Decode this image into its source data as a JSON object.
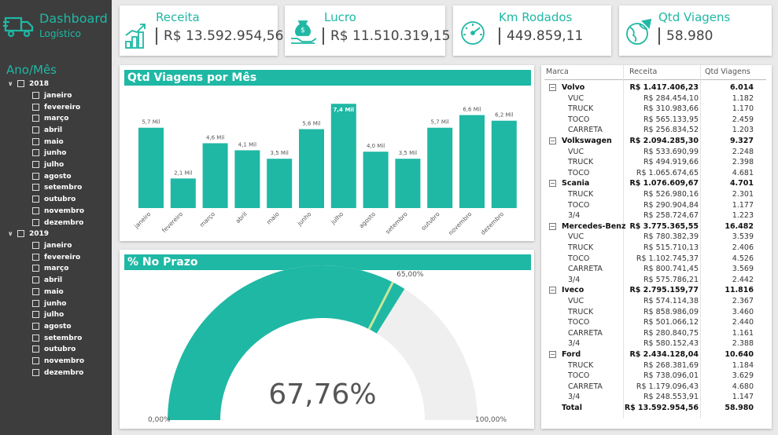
{
  "colors": {
    "accent": "#1fb8a4",
    "sidebar": "#3d3d3d",
    "gauge_remaining": "#f0efef",
    "target_marker": "#c8e89a"
  },
  "brand": {
    "title": "Dashboard",
    "subtitle": "Logístico",
    "icon": "truck-icon"
  },
  "slicer": {
    "title": "Ano/Mês",
    "years": [
      {
        "label": "2018",
        "months": [
          "janeiro",
          "fevereiro",
          "março",
          "abril",
          "maio",
          "junho",
          "julho",
          "agosto",
          "setembro",
          "outubro",
          "novembro",
          "dezembro"
        ]
      },
      {
        "label": "2019",
        "months": [
          "janeiro",
          "fevereiro",
          "março",
          "abril",
          "maio",
          "junho",
          "julho",
          "agosto",
          "setembro",
          "outubro",
          "novembro",
          "dezembro"
        ]
      }
    ]
  },
  "kpis": [
    {
      "label": "Receita",
      "value": "R$ 13.592.954,56",
      "icon": "growth-coins-icon"
    },
    {
      "label": "Lucro",
      "value": "R$ 11.510.319,15",
      "icon": "money-hand-icon"
    },
    {
      "label": "Km Rodados",
      "value": "449.859,11",
      "icon": "speedometer-icon"
    },
    {
      "label": "Qtd Viagens",
      "value": "58.980",
      "icon": "globe-plane-icon"
    }
  ],
  "bar_chart": {
    "title": "Qtd Viagens por Mês",
    "chart_data": {
      "type": "bar",
      "categories": [
        "janeiro",
        "fevereiro",
        "março",
        "abril",
        "maio",
        "junho",
        "julho",
        "agosto",
        "setembro",
        "outubro",
        "novembro",
        "dezembro"
      ],
      "values": [
        5.7,
        2.1,
        4.6,
        4.1,
        3.5,
        5.6,
        7.4,
        4.0,
        3.5,
        5.7,
        6.6,
        6.2
      ],
      "data_labels": [
        "5,7 Mil",
        "2,1 Mil",
        "4,6 Mil",
        "4,1 Mil",
        "3,5 Mil",
        "5,6 Mil",
        "7,4 Mil",
        "4,0 Mil",
        "3,5 Mil",
        "5,7 Mil",
        "6,6 Mil",
        "6,2 Mil"
      ],
      "highlight_index": 6,
      "ylim": [
        0,
        7.8
      ]
    }
  },
  "gauge": {
    "title": "% No Prazo",
    "value": 67.76,
    "value_label": "67,76%",
    "target": 65,
    "target_label": "65,00%",
    "min_label": "0,00%",
    "max_label": "100,00%"
  },
  "matrix": {
    "headers": [
      "Marca",
      "Receita",
      "Qtd Viagens"
    ],
    "brands": [
      {
        "name": "Volvo",
        "receita": "R$ 1.417.406,23",
        "qtd": "6.014",
        "rows": [
          [
            "VUC",
            "R$ 284.454,10",
            "1.182"
          ],
          [
            "TRUCK",
            "R$ 310.983,66",
            "1.170"
          ],
          [
            "TOCO",
            "R$ 565.133,95",
            "2.459"
          ],
          [
            "CARRETA",
            "R$ 256.834,52",
            "1.203"
          ]
        ]
      },
      {
        "name": "Volkswagen",
        "receita": "R$ 2.094.285,30",
        "qtd": "9.327",
        "rows": [
          [
            "VUC",
            "R$ 533.690,99",
            "2.248"
          ],
          [
            "TRUCK",
            "R$ 494.919,66",
            "2.398"
          ],
          [
            "TOCO",
            "R$ 1.065.674,65",
            "4.681"
          ]
        ]
      },
      {
        "name": "Scania",
        "receita": "R$ 1.076.609,67",
        "qtd": "4.701",
        "rows": [
          [
            "TRUCK",
            "R$ 526.980,16",
            "2.301"
          ],
          [
            "TOCO",
            "R$ 290.904,84",
            "1.177"
          ],
          [
            "3/4",
            "R$ 258.724,67",
            "1.223"
          ]
        ]
      },
      {
        "name": "Mercedes-Benz",
        "receita": "R$ 3.775.365,55",
        "qtd": "16.482",
        "rows": [
          [
            "VUC",
            "R$ 780.382,39",
            "3.539"
          ],
          [
            "TRUCK",
            "R$ 515.710,13",
            "2.406"
          ],
          [
            "TOCO",
            "R$ 1.102.745,37",
            "4.526"
          ],
          [
            "CARRETA",
            "R$ 800.741,45",
            "3.569"
          ],
          [
            "3/4",
            "R$ 575.786,21",
            "2.442"
          ]
        ]
      },
      {
        "name": "Iveco",
        "receita": "R$ 2.795.159,77",
        "qtd": "11.816",
        "rows": [
          [
            "VUC",
            "R$ 574.114,38",
            "2.367"
          ],
          [
            "TRUCK",
            "R$ 858.986,09",
            "3.460"
          ],
          [
            "TOCO",
            "R$ 501.066,12",
            "2.440"
          ],
          [
            "CARRETA",
            "R$ 280.840,75",
            "1.161"
          ],
          [
            "3/4",
            "R$ 580.152,43",
            "2.388"
          ]
        ]
      },
      {
        "name": "Ford",
        "receita": "R$ 2.434.128,04",
        "qtd": "10.640",
        "rows": [
          [
            "TRUCK",
            "R$ 268.381,69",
            "1.184"
          ],
          [
            "TOCO",
            "R$ 738.096,01",
            "3.629"
          ],
          [
            "CARRETA",
            "R$ 1.179.096,43",
            "4.680"
          ],
          [
            "3/4",
            "R$ 248.553,91",
            "1.147"
          ]
        ]
      }
    ],
    "total": {
      "label": "Total",
      "receita": "R$ 13.592.954,56",
      "qtd": "58.980"
    }
  }
}
